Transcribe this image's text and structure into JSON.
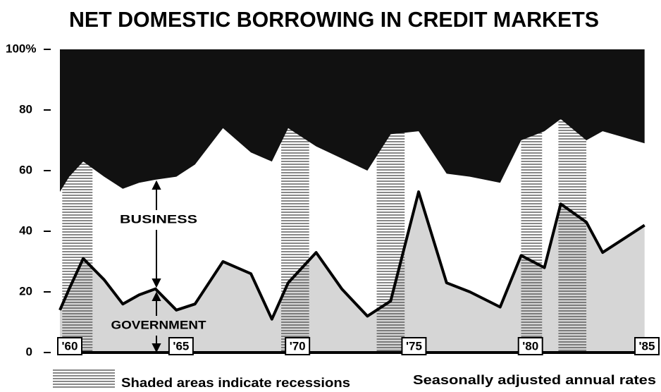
{
  "chart_data": {
    "type": "stacked-area",
    "title": "NET DOMESTIC BORROWING IN CREDIT MARKETS",
    "x": [
      1959.8,
      1960.2,
      1960.8,
      1961.7,
      1962.5,
      1963.2,
      1963.9,
      1964.8,
      1965.6,
      1966.8,
      1968.0,
      1968.9,
      1969.6,
      1970.8,
      1971.9,
      1973.0,
      1974.0,
      1975.2,
      1976.4,
      1977.4,
      1978.7,
      1979.6,
      1980.6,
      1981.3,
      1982.4,
      1983.1,
      1984.9
    ],
    "series": [
      {
        "name": "GOVERNMENT",
        "color": "#d6d6d6",
        "line_color": "#000000",
        "values": [
          14,
          21,
          31,
          24,
          16,
          19,
          21,
          14,
          16,
          30,
          26,
          11,
          23,
          33,
          21,
          12,
          17,
          53,
          23,
          20,
          15,
          32,
          28,
          49,
          43,
          33,
          42
        ]
      },
      {
        "name": "BUSINESS",
        "color": "#ffffff",
        "values": [
          39,
          37,
          32,
          34,
          38,
          37,
          36,
          44,
          46,
          44,
          40,
          52,
          51,
          35,
          43,
          48,
          55,
          20,
          36,
          38,
          41,
          38,
          45,
          28,
          27,
          40,
          27
        ]
      },
      {
        "color": "#111111",
        "values": [
          47,
          42,
          37,
          42,
          46,
          44,
          43,
          42,
          38,
          26,
          34,
          37,
          26,
          32,
          36,
          40,
          28,
          27,
          41,
          42,
          44,
          30,
          27,
          23,
          30,
          27,
          31
        ]
      }
    ],
    "recessions": [
      [
        1959.9,
        1961.2
      ],
      [
        1969.3,
        1970.5
      ],
      [
        1973.4,
        1974.6
      ],
      [
        1979.6,
        1980.5
      ],
      [
        1981.2,
        1982.4
      ]
    ],
    "recession_color": "#555555",
    "xlim": [
      1959.8,
      1985
    ],
    "xticks": [
      {
        "value": 1960,
        "label": "'60"
      },
      {
        "value": 1965,
        "label": "'65"
      },
      {
        "value": 1970,
        "label": "'70"
      },
      {
        "value": 1975,
        "label": "'75"
      },
      {
        "value": 1980,
        "label": "'80"
      },
      {
        "value": 1985,
        "label": "'85"
      }
    ],
    "ylim": [
      0,
      100
    ],
    "yticks": [
      0,
      20,
      40,
      60,
      80,
      {
        "value": 100,
        "label": "100%"
      }
    ],
    "notes": [
      "Shaded areas indicate recessions",
      "Seasonally adjusted annual rates"
    ]
  }
}
